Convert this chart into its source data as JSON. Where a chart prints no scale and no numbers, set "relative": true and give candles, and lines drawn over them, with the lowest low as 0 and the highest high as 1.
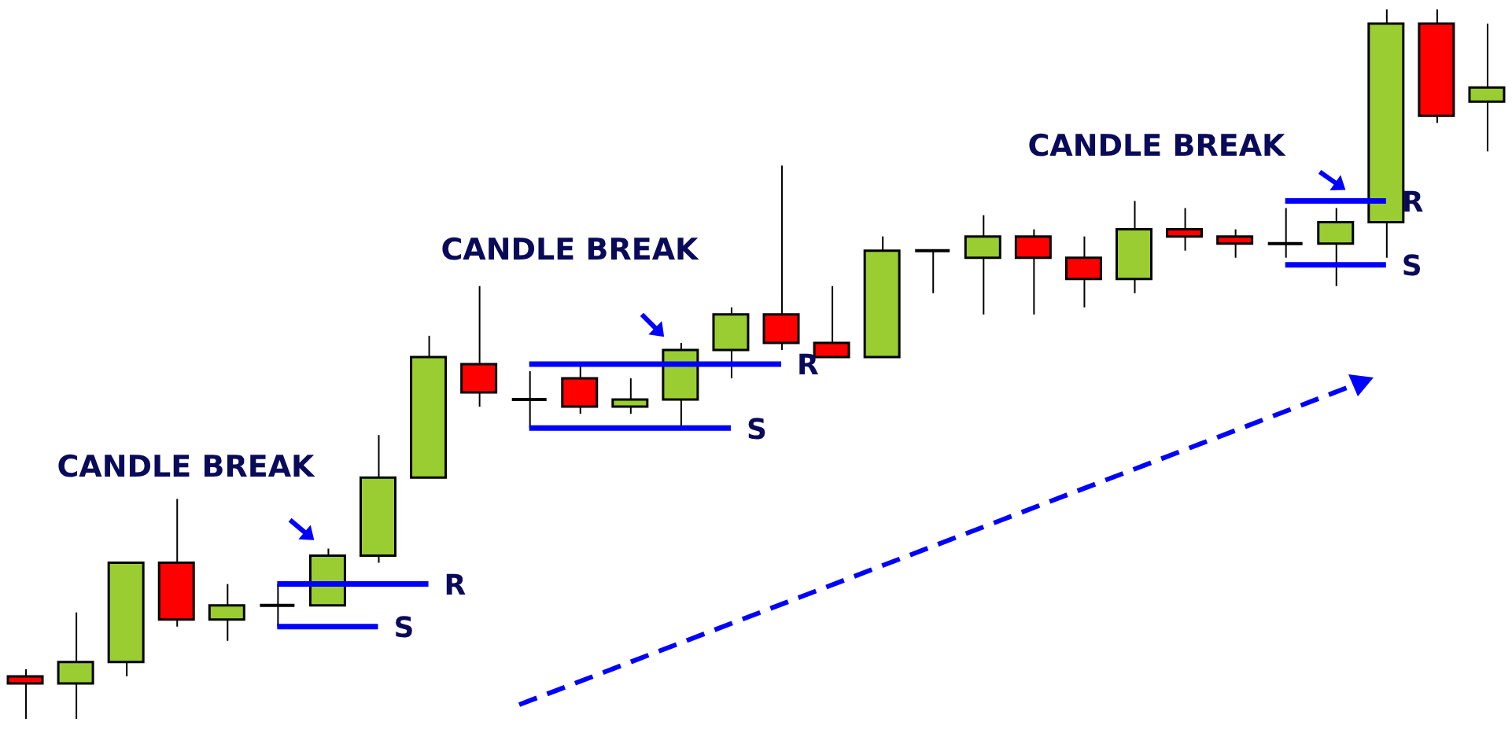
{
  "chart_data": {
    "type": "candlestick",
    "relative": true,
    "categories": [
      null,
      null,
      null,
      null,
      null,
      null,
      null,
      null,
      null,
      null,
      null,
      null,
      null,
      null,
      null,
      null,
      null,
      null,
      null,
      null,
      null,
      null,
      null,
      null,
      null,
      null,
      null,
      null,
      null,
      null
    ],
    "ohlc": [
      [
        0.06,
        0.07,
        0,
        0.05
      ],
      [
        0.05,
        0.15,
        0,
        0.08
      ],
      [
        0.08,
        0.22,
        0.06,
        0.22
      ],
      [
        0.22,
        0.31,
        0.13,
        0.14
      ],
      [
        0.14,
        0.19,
        0.11,
        0.16
      ],
      [
        0.16,
        0.19,
        0.13,
        0.16
      ],
      [
        0.16,
        0.24,
        0.16,
        0.23
      ],
      [
        0.23,
        0.4,
        0.22,
        0.34
      ],
      [
        0.34,
        0.54,
        0.34,
        0.51
      ],
      [
        0.5,
        0.61,
        0.44,
        0.46
      ],
      [
        0.45,
        0.49,
        0.41,
        0.45
      ],
      [
        0.48,
        0.5,
        0.43,
        0.44
      ],
      [
        0.44,
        0.48,
        0.43,
        0.45
      ],
      [
        0.45,
        0.53,
        0.41,
        0.52
      ],
      [
        0.52,
        0.58,
        0.48,
        0.57
      ],
      [
        0.57,
        0.78,
        0.52,
        0.53
      ],
      [
        0.53,
        0.61,
        0.51,
        0.51
      ],
      [
        0.51,
        0.68,
        0.51,
        0.66
      ],
      [
        0.66,
        0.66,
        0.6,
        0.66
      ],
      [
        0.65,
        0.71,
        0.57,
        0.68
      ],
      [
        0.68,
        0.69,
        0.57,
        0.65
      ],
      [
        0.65,
        0.68,
        0.58,
        0.62
      ],
      [
        0.62,
        0.73,
        0.6,
        0.69
      ],
      [
        0.69,
        0.72,
        0.66,
        0.68
      ],
      [
        0.68,
        0.69,
        0.65,
        0.67
      ],
      [
        0.67,
        0.72,
        0.65,
        0.67
      ],
      [
        0.67,
        0.72,
        0.61,
        0.7
      ],
      [
        0.7,
        1,
        0.65,
        0.98
      ],
      [
        0.98,
        1,
        0.84,
        0.85
      ],
      [
        0.87,
        0.98,
        0.8,
        0.89
      ]
    ],
    "colors": [
      "#ff0000",
      "#9acd32",
      "#9acd32",
      "#ff0000",
      "#9acd32",
      "#000000",
      "#9acd32",
      "#9acd32",
      "#9acd32",
      "#ff0000",
      "#000000",
      "#ff0000",
      "#9acd32",
      "#9acd32",
      "#9acd32",
      "#ff0000",
      "#ff0000",
      "#9acd32",
      "#000000",
      "#9acd32",
      "#ff0000",
      "#ff0000",
      "#9acd32",
      "#ff0000",
      "#ff0000",
      "#000000",
      "#9acd32",
      "#9acd32",
      "#ff0000",
      "#9acd32"
    ],
    "series": [
      {
        "name": "R",
        "type": "line",
        "color": "#0000ff",
        "values": [
          null,
          null,
          null,
          null,
          null,
          0.19,
          0.19,
          0.19,
          0.19,
          null,
          0.5,
          0.5,
          0.5,
          0.5,
          0.5,
          0.5,
          null,
          null,
          null,
          null,
          null,
          null,
          null,
          null,
          null,
          0.73,
          0.73,
          0.73,
          null,
          null
        ]
      },
      {
        "name": "S",
        "type": "line",
        "color": "#0000ff",
        "values": [
          null,
          null,
          null,
          null,
          null,
          0.13,
          0.13,
          0.13,
          null,
          null,
          0.41,
          0.41,
          0.41,
          0.41,
          0.41,
          null,
          null,
          null,
          null,
          null,
          null,
          null,
          null,
          null,
          null,
          0.64,
          0.64,
          0.64,
          null,
          null
        ]
      }
    ],
    "annotations": [
      "CANDLE BREAK",
      "CANDLE BREAK",
      "CANDLE BREAK"
    ]
  }
}
